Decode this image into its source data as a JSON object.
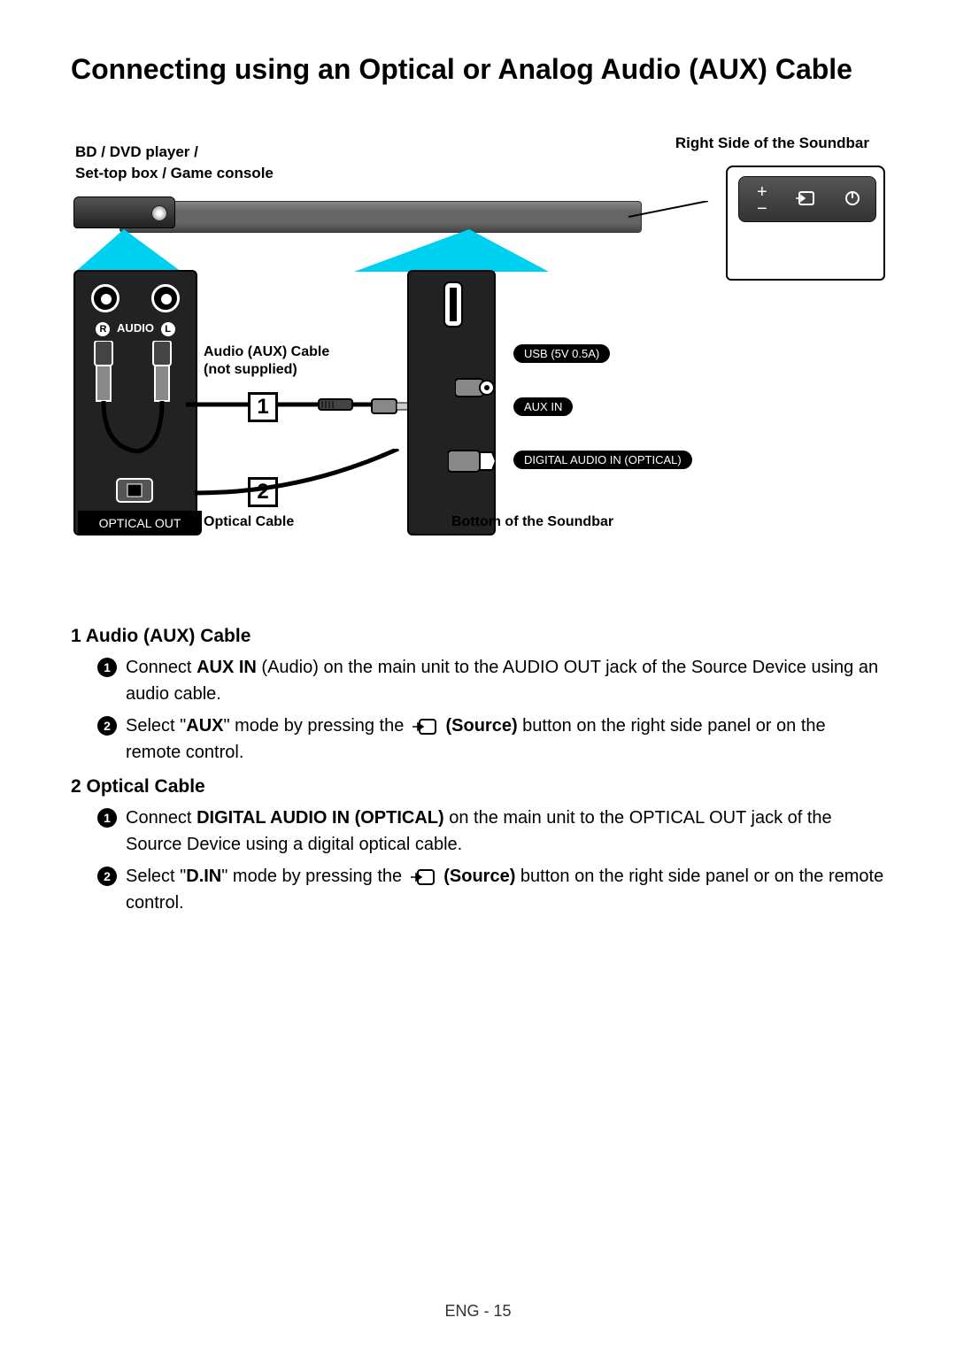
{
  "title": "Connecting using an Optical or Analog Audio (AUX) Cable",
  "diagram": {
    "source_device_label_line1": "BD / DVD player /",
    "source_device_label_line2": "Set-top box / Game console",
    "right_side_label": "Right Side of the Soundbar",
    "audio_rl_label": "AUDIO",
    "audio_r": "R",
    "audio_l": "L",
    "aux_cable_label_line1": "Audio (AUX) Cable",
    "aux_cable_label_line2": "(not supplied)",
    "optical_cable_label": "Optical Cable",
    "optical_out_label": "OPTICAL OUT",
    "usb_label": "USB (5V 0.5A)",
    "aux_in_label": "AUX IN",
    "digital_in_label": "DIGITAL AUDIO IN (OPTICAL)",
    "bottom_label": "Bottom of the Soundbar",
    "marker_1": "1",
    "marker_2": "2",
    "cyan_color": "#00d0f0",
    "panel_bg": "#222222"
  },
  "sections": [
    {
      "number": "1",
      "title": "Audio (AUX) Cable",
      "steps": [
        {
          "num": "1",
          "pre": "Connect ",
          "bold1": "AUX IN",
          "mid": " (Audio) on the main unit to the AUDIO OUT jack of the Source Device using an audio cable."
        },
        {
          "num": "2",
          "pre": "Select \"",
          "bold1": "AUX",
          "mid": "\" mode by pressing the ",
          "icon": true,
          "bold2": "(Source)",
          "post": " button on the right side panel or on the remote control."
        }
      ]
    },
    {
      "number": "2",
      "title": "Optical Cable",
      "steps": [
        {
          "num": "1",
          "pre": "Connect ",
          "bold1": "DIGITAL AUDIO IN (OPTICAL)",
          "mid": " on the main unit to the OPTICAL OUT jack of the Source Device using a digital optical cable."
        },
        {
          "num": "2",
          "pre": "Select \"",
          "bold1": "D.IN",
          "mid": "\" mode by pressing the ",
          "icon": true,
          "bold2": "(Source)",
          "post": " button on the right side panel or on the remote control."
        }
      ]
    }
  ],
  "footer": "ENG - 15"
}
